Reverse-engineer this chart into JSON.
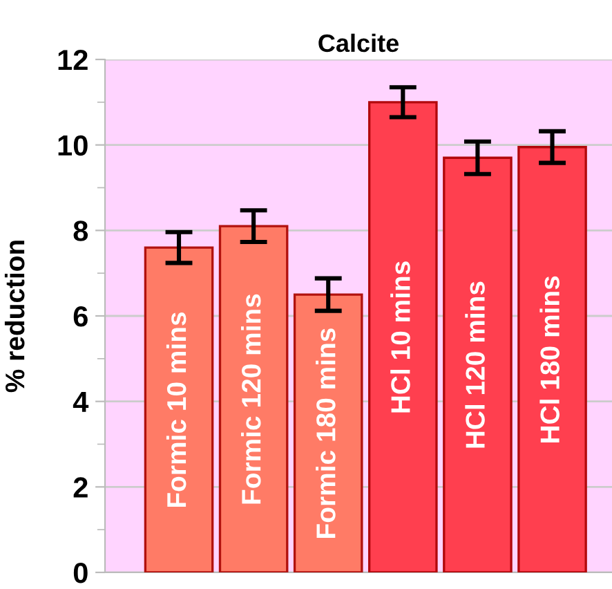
{
  "chart_data": {
    "type": "bar",
    "title": "Calcite",
    "ylabel": "% reduction",
    "categories": [
      "Formic 10 mins",
      "Formic 120 mins",
      "Formic 180 mins",
      "HCl 10 mins",
      "HCl 120 mins",
      "HCl 180 mins"
    ],
    "values": [
      7.6,
      8.1,
      6.5,
      11.0,
      9.7,
      9.95
    ],
    "errors": [
      0.36,
      0.37,
      0.38,
      0.35,
      0.38,
      0.37
    ],
    "colors": [
      "#ff7b66",
      "#ff7b66",
      "#ff7b66",
      "#ff3f4f",
      "#ff3f4f",
      "#ff3f4f"
    ],
    "ylim": [
      0,
      12
    ],
    "yticks": [
      0,
      {
        "value": 1,
        "label": null
      },
      2,
      {
        "value": 3,
        "label": null
      },
      4,
      {
        "value": 5,
        "label": null
      },
      6,
      {
        "value": 7,
        "label": null
      },
      8,
      {
        "value": 9,
        "label": null
      },
      10,
      {
        "value": 11,
        "label": null
      },
      12
    ],
    "grid": "y",
    "legend": false
  }
}
